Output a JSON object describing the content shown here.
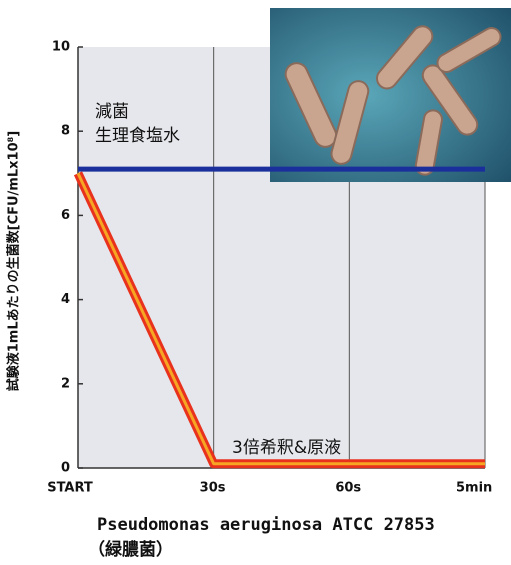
{
  "chart_data": {
    "type": "line",
    "y_label": "試験液1mLあたりの生菌数[CFU/mLx10⁸]",
    "categories": [
      "START",
      "30s",
      "60s",
      "5min"
    ],
    "series": [
      {
        "name": "減菌\n生理食塩水",
        "color": "#1a2f9c",
        "values": [
          7.1,
          7.1,
          7.1,
          7.1
        ]
      },
      {
        "name": "3倍希釈&原液",
        "color": "#e8321e",
        "values": [
          7,
          0.1,
          0.1,
          0.1
        ]
      }
    ],
    "ylim": [
      0,
      10
    ],
    "yticks": [
      0,
      2,
      4,
      6,
      8,
      10
    ],
    "grid": true,
    "caption": "Pseudomonas aeruginosa ATCC 27853",
    "caption_sub": "（緑膿菌）"
  }
}
